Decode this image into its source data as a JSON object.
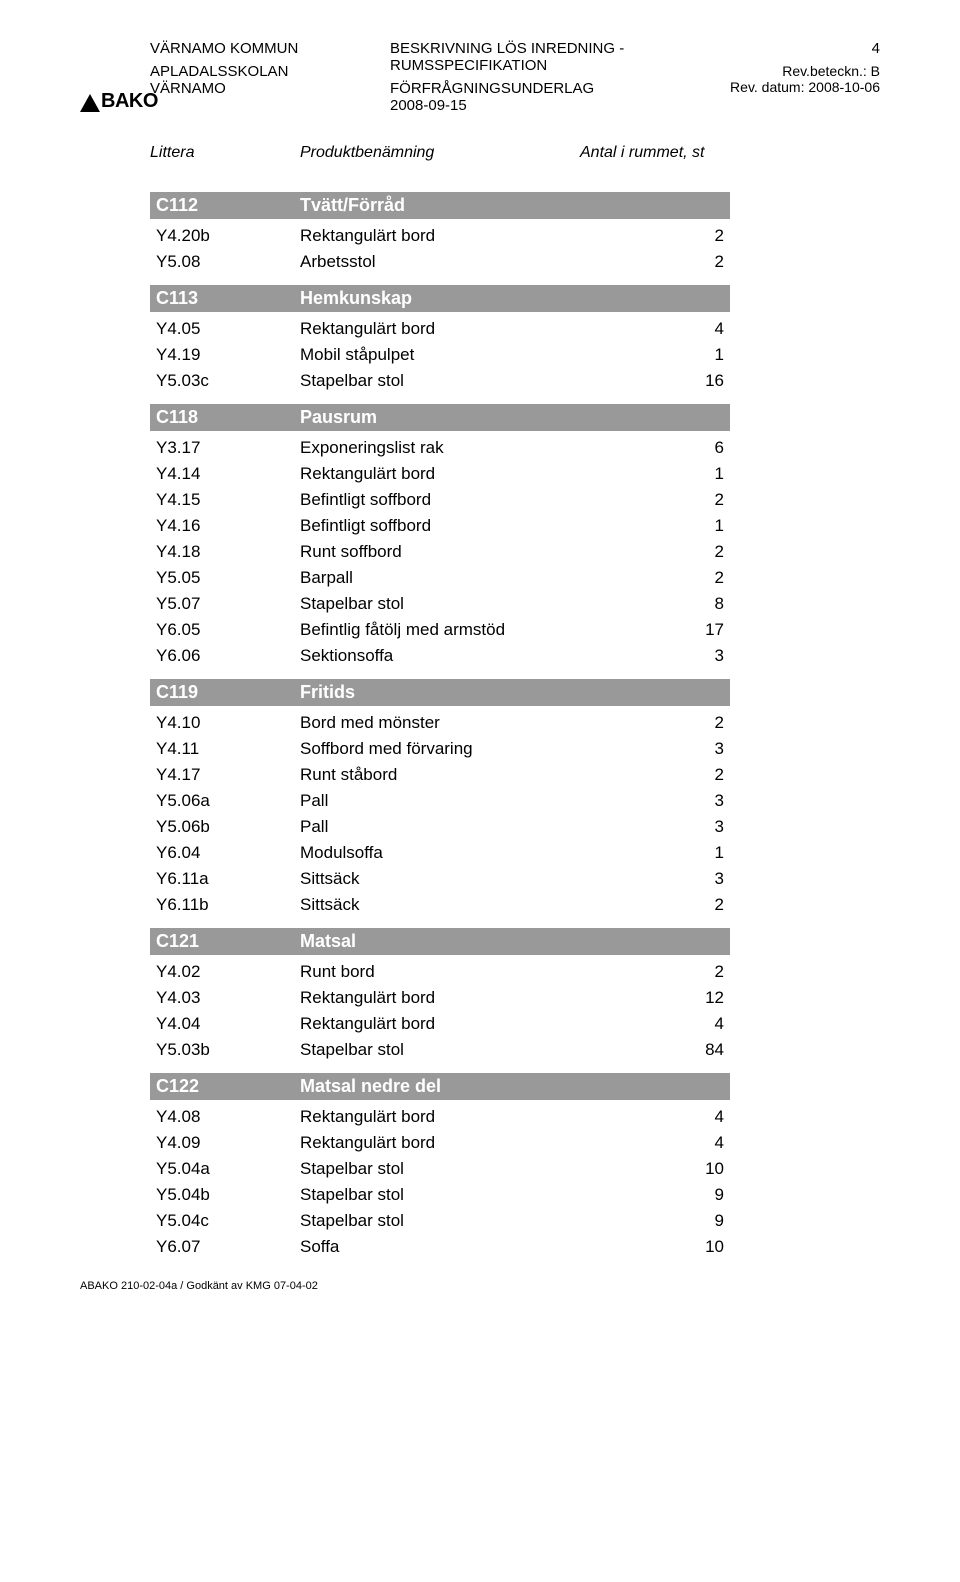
{
  "header": {
    "org": "VÄRNAMO KOMMUN",
    "school": "APLADALSSKOLAN",
    "city": "VÄRNAMO",
    "title": "BESKRIVNING LÖS INREDNING - RUMSSPECIFIKATION",
    "subtitle": "FÖRFRÅGNINGSUNDERLAG",
    "date": "2008-09-15",
    "page_number": "4",
    "rev_label": "Rev.beteckn.:",
    "rev_value": "B",
    "rev_date_label": "Rev. datum:",
    "rev_date_value": "2008-10-06",
    "logo_text": "BAKO"
  },
  "column_headers": {
    "c1": "Littera",
    "c2": "Produktbenämning",
    "c3": "Antal i rummet, st"
  },
  "sections": [
    {
      "code": "C112",
      "title": "Tvätt/Förråd",
      "rows": [
        {
          "code": "Y4.20b",
          "name": "Rektangulärt bord",
          "qty": "2"
        },
        {
          "code": "Y5.08",
          "name": "Arbetsstol",
          "qty": "2"
        }
      ]
    },
    {
      "code": "C113",
      "title": "Hemkunskap",
      "rows": [
        {
          "code": "Y4.05",
          "name": "Rektangulärt bord",
          "qty": "4"
        },
        {
          "code": "Y4.19",
          "name": "Mobil ståpulpet",
          "qty": "1"
        },
        {
          "code": "Y5.03c",
          "name": "Stapelbar stol",
          "qty": "16"
        }
      ]
    },
    {
      "code": "C118",
      "title": "Pausrum",
      "rows": [
        {
          "code": "Y3.17",
          "name": "Exponeringslist rak",
          "qty": "6"
        },
        {
          "code": "Y4.14",
          "name": "Rektangulärt bord",
          "qty": "1"
        },
        {
          "code": "Y4.15",
          "name": "Befintligt soffbord",
          "qty": "2"
        },
        {
          "code": "Y4.16",
          "name": "Befintligt soffbord",
          "qty": "1"
        },
        {
          "code": "Y4.18",
          "name": "Runt soffbord",
          "qty": "2"
        },
        {
          "code": "Y5.05",
          "name": "Barpall",
          "qty": "2"
        },
        {
          "code": "Y5.07",
          "name": "Stapelbar stol",
          "qty": "8"
        },
        {
          "code": "Y6.05",
          "name": "Befintlig fåtölj med armstöd",
          "qty": "17"
        },
        {
          "code": "Y6.06",
          "name": "Sektionsoffa",
          "qty": "3"
        }
      ]
    },
    {
      "code": "C119",
      "title": "Fritids",
      "rows": [
        {
          "code": "Y4.10",
          "name": "Bord med mönster",
          "qty": "2"
        },
        {
          "code": "Y4.11",
          "name": "Soffbord med förvaring",
          "qty": "3"
        },
        {
          "code": "Y4.17",
          "name": "Runt ståbord",
          "qty": "2"
        },
        {
          "code": "Y5.06a",
          "name": "Pall",
          "qty": "3"
        },
        {
          "code": "Y5.06b",
          "name": "Pall",
          "qty": "3"
        },
        {
          "code": "Y6.04",
          "name": "Modulsoffa",
          "qty": "1"
        },
        {
          "code": "Y6.11a",
          "name": "Sittsäck",
          "qty": "3"
        },
        {
          "code": "Y6.11b",
          "name": "Sittsäck",
          "qty": "2"
        }
      ]
    },
    {
      "code": "C121",
      "title": "Matsal",
      "rows": [
        {
          "code": "Y4.02",
          "name": "Runt bord",
          "qty": "2"
        },
        {
          "code": "Y4.03",
          "name": "Rektangulärt bord",
          "qty": "12"
        },
        {
          "code": "Y4.04",
          "name": "Rektangulärt bord",
          "qty": "4"
        },
        {
          "code": "Y5.03b",
          "name": "Stapelbar stol",
          "qty": "84"
        }
      ]
    },
    {
      "code": "C122",
      "title": "Matsal nedre del",
      "rows": [
        {
          "code": "Y4.08",
          "name": "Rektangulärt bord",
          "qty": "4"
        },
        {
          "code": "Y4.09",
          "name": "Rektangulärt bord",
          "qty": "4"
        },
        {
          "code": "Y5.04a",
          "name": "Stapelbar stol",
          "qty": "10"
        },
        {
          "code": "Y5.04b",
          "name": "Stapelbar stol",
          "qty": "9"
        },
        {
          "code": "Y5.04c",
          "name": "Stapelbar stol",
          "qty": "9"
        },
        {
          "code": "Y6.07",
          "name": "Soffa",
          "qty": "10"
        }
      ]
    }
  ],
  "footer": "ABAKO 210-02-04a / Godkänt av KMG 07-04-02",
  "style": {
    "section_header_bg": "#99999a",
    "section_header_fg": "#ffffff",
    "body_fg": "#000000",
    "font_family": "Arial, Helvetica, sans-serif"
  }
}
